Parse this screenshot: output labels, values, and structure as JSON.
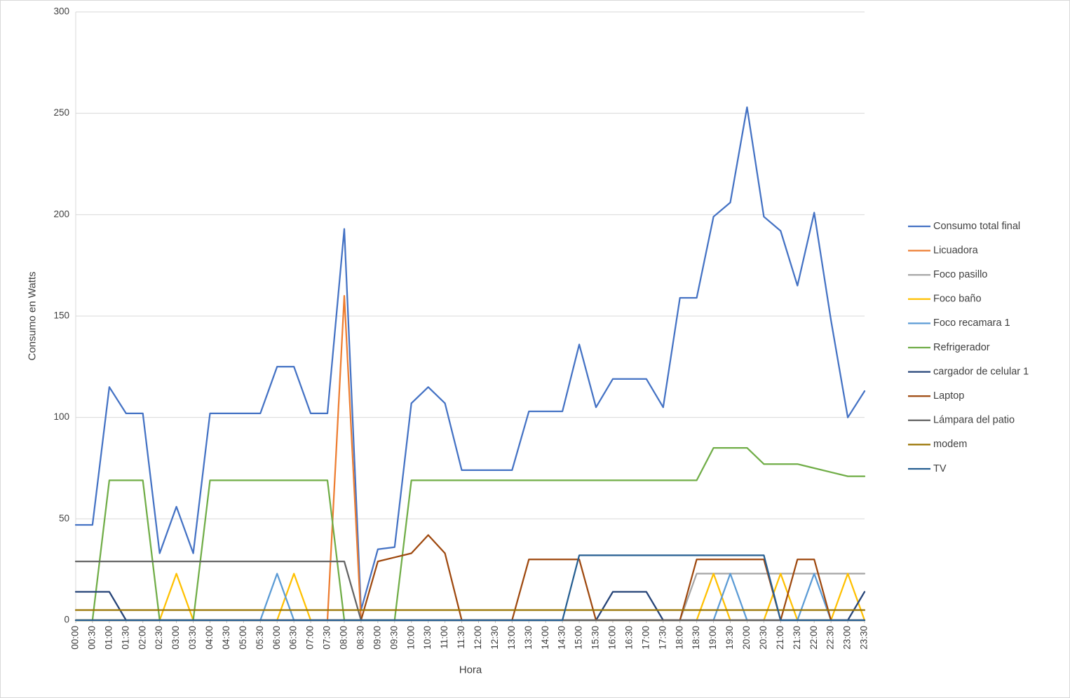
{
  "chart_data": {
    "type": "line",
    "title": "",
    "xlabel": "Hora",
    "ylabel": "Consumo en Watts",
    "ylim": [
      0,
      300
    ],
    "yticks": [
      0,
      50,
      100,
      150,
      200,
      250,
      300
    ],
    "grid": "horizontal",
    "legend_position": "right",
    "colors": {
      "grid": "#D9D9D9",
      "axis": "#BFBFBF",
      "text": "#404040",
      "background": "#FFFFFF"
    },
    "x": [
      "00:00",
      "00:30",
      "01:00",
      "01:30",
      "02:00",
      "02:30",
      "03:00",
      "03:30",
      "04:00",
      "04:30",
      "05:00",
      "05:30",
      "06:00",
      "06:30",
      "07:00",
      "07:30",
      "08:00",
      "08:30",
      "09:00",
      "09:30",
      "10:00",
      "10:30",
      "11:00",
      "11:30",
      "12:00",
      "12:30",
      "13:00",
      "13:30",
      "14:00",
      "14:30",
      "15:00",
      "15:30",
      "16:00",
      "16:30",
      "17:00",
      "17:30",
      "18:00",
      "18:30",
      "19:00",
      "19:30",
      "20:00",
      "20:30",
      "21:00",
      "21:30",
      "22:00",
      "22:30",
      "23:00",
      "23:30"
    ],
    "series": [
      {
        "name": "Consumo total final",
        "color": "#4472C4",
        "values": [
          47,
          47,
          115,
          102,
          102,
          33,
          56,
          33,
          102,
          102,
          102,
          102,
          125,
          125,
          102,
          102,
          193,
          5,
          35,
          36,
          107,
          115,
          107,
          74,
          74,
          74,
          74,
          103,
          103,
          103,
          136,
          105,
          119,
          119,
          119,
          105,
          159,
          159,
          199,
          206,
          253,
          199,
          192,
          165,
          201,
          148,
          100,
          113
        ]
      },
      {
        "name": "Licuadora",
        "color": "#ED7D31",
        "values": [
          0,
          0,
          0,
          0,
          0,
          0,
          0,
          0,
          0,
          0,
          0,
          0,
          0,
          0,
          0,
          0,
          160,
          0,
          0,
          0,
          0,
          0,
          0,
          0,
          0,
          0,
          0,
          0,
          0,
          0,
          0,
          0,
          0,
          0,
          0,
          0,
          0,
          0,
          0,
          0,
          0,
          0,
          0,
          0,
          0,
          0,
          0,
          0
        ]
      },
      {
        "name": "Foco pasillo",
        "color": "#A5A5A5",
        "values": [
          0,
          0,
          0,
          0,
          0,
          0,
          0,
          0,
          0,
          0,
          0,
          0,
          0,
          0,
          0,
          0,
          0,
          0,
          0,
          0,
          0,
          0,
          0,
          0,
          0,
          0,
          0,
          0,
          0,
          0,
          0,
          0,
          0,
          0,
          0,
          0,
          0,
          23,
          23,
          23,
          23,
          23,
          23,
          23,
          23,
          23,
          23,
          23
        ]
      },
      {
        "name": "Foco baño",
        "color": "#FFC000",
        "values": [
          0,
          0,
          0,
          0,
          0,
          0,
          23,
          0,
          0,
          0,
          0,
          0,
          0,
          23,
          0,
          0,
          0,
          0,
          0,
          0,
          0,
          0,
          0,
          0,
          0,
          0,
          0,
          0,
          0,
          0,
          0,
          0,
          0,
          0,
          0,
          0,
          0,
          0,
          23,
          0,
          0,
          0,
          23,
          0,
          0,
          0,
          23,
          0
        ]
      },
      {
        "name": "Foco recamara 1",
        "color": "#5B9BD5",
        "values": [
          0,
          0,
          0,
          0,
          0,
          0,
          0,
          0,
          0,
          0,
          0,
          0,
          23,
          0,
          0,
          0,
          0,
          0,
          0,
          0,
          0,
          0,
          0,
          0,
          0,
          0,
          0,
          0,
          0,
          0,
          0,
          0,
          0,
          0,
          0,
          0,
          0,
          0,
          0,
          23,
          0,
          0,
          0,
          0,
          23,
          0,
          0,
          0
        ]
      },
      {
        "name": "Refrigerador",
        "color": "#70AD47",
        "values": [
          0,
          0,
          69,
          69,
          69,
          0,
          0,
          0,
          69,
          69,
          69,
          69,
          69,
          69,
          69,
          69,
          0,
          0,
          0,
          0,
          69,
          69,
          69,
          69,
          69,
          69,
          69,
          69,
          69,
          69,
          69,
          69,
          69,
          69,
          69,
          69,
          69,
          69,
          85,
          85,
          85,
          77,
          77,
          77,
          75,
          73,
          71,
          71
        ]
      },
      {
        "name": "cargador de celular 1",
        "color": "#264478",
        "values": [
          14,
          14,
          14,
          0,
          0,
          0,
          0,
          0,
          0,
          0,
          0,
          0,
          0,
          0,
          0,
          0,
          0,
          0,
          0,
          0,
          0,
          0,
          0,
          0,
          0,
          0,
          0,
          0,
          0,
          0,
          0,
          0,
          14,
          14,
          14,
          0,
          0,
          0,
          0,
          0,
          0,
          0,
          0,
          0,
          0,
          0,
          0,
          14
        ]
      },
      {
        "name": "Laptop",
        "color": "#9E480E",
        "values": [
          0,
          0,
          0,
          0,
          0,
          0,
          0,
          0,
          0,
          0,
          0,
          0,
          0,
          0,
          0,
          0,
          0,
          0,
          29,
          31,
          33,
          42,
          33,
          0,
          0,
          0,
          0,
          30,
          30,
          30,
          30,
          0,
          0,
          0,
          0,
          0,
          0,
          30,
          30,
          30,
          30,
          30,
          0,
          30,
          30,
          0,
          0,
          0
        ]
      },
      {
        "name": "Lámpara del patio",
        "color": "#636363",
        "values": [
          29,
          29,
          29,
          29,
          29,
          29,
          29,
          29,
          29,
          29,
          29,
          29,
          29,
          29,
          29,
          29,
          29,
          0,
          0,
          0,
          0,
          0,
          0,
          0,
          0,
          0,
          0,
          0,
          0,
          0,
          0,
          0,
          0,
          0,
          0,
          0,
          0,
          0,
          0,
          0,
          0,
          0,
          0,
          0,
          0,
          0,
          0,
          0
        ]
      },
      {
        "name": "modem",
        "color": "#997300",
        "values": [
          5,
          5,
          5,
          5,
          5,
          5,
          5,
          5,
          5,
          5,
          5,
          5,
          5,
          5,
          5,
          5,
          5,
          5,
          5,
          5,
          5,
          5,
          5,
          5,
          5,
          5,
          5,
          5,
          5,
          5,
          5,
          5,
          5,
          5,
          5,
          5,
          5,
          5,
          5,
          5,
          5,
          5,
          5,
          5,
          5,
          5,
          5,
          5
        ]
      },
      {
        "name": "TV",
        "color": "#255E91",
        "values": [
          0,
          0,
          0,
          0,
          0,
          0,
          0,
          0,
          0,
          0,
          0,
          0,
          0,
          0,
          0,
          0,
          0,
          0,
          0,
          0,
          0,
          0,
          0,
          0,
          0,
          0,
          0,
          0,
          0,
          0,
          32,
          32,
          32,
          32,
          32,
          32,
          32,
          32,
          32,
          32,
          32,
          32,
          0,
          0,
          0,
          0,
          0,
          0
        ]
      }
    ]
  }
}
